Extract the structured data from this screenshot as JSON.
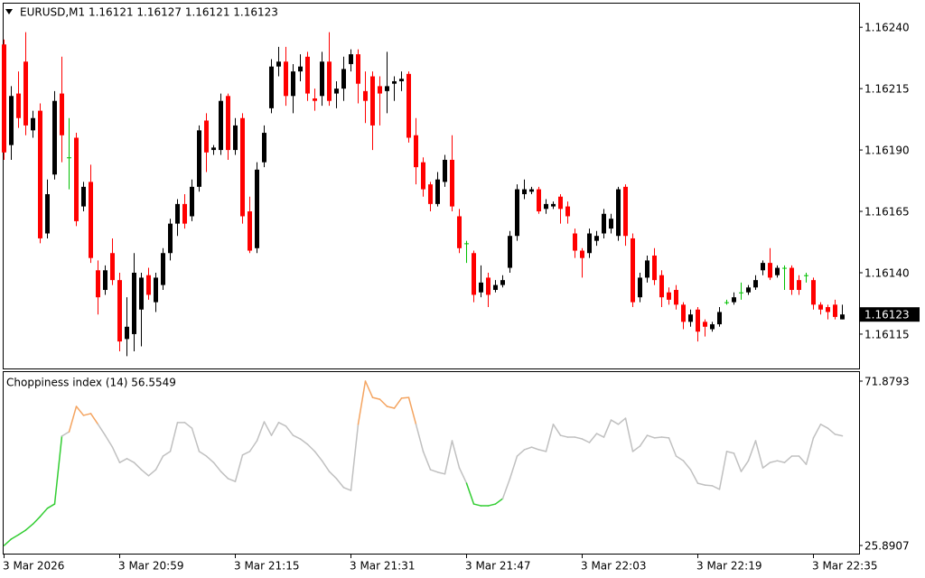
{
  "chart_data": [
    {
      "type": "candlestick",
      "title": "EURUSD,M1  1.16121 1.16127 1.16121 1.16123",
      "categories": [
        "3 Mar 2026",
        null,
        null,
        null,
        null,
        null,
        null,
        null,
        null,
        null,
        null,
        null,
        null,
        null,
        null,
        null,
        "3 Mar 20:59",
        null,
        null,
        null,
        null,
        null,
        null,
        null,
        null,
        null,
        null,
        null,
        null,
        null,
        null,
        null,
        "3 Mar 21:15",
        null,
        null,
        null,
        null,
        null,
        null,
        null,
        null,
        null,
        null,
        null,
        null,
        null,
        null,
        null,
        "3 Mar 21:31",
        null,
        null,
        null,
        null,
        null,
        null,
        null,
        null,
        null,
        null,
        null,
        null,
        null,
        null,
        null,
        "3 Mar 21:47",
        null,
        null,
        null,
        null,
        null,
        null,
        null,
        null,
        null,
        null,
        null,
        null,
        null,
        null,
        null,
        "3 Mar 22:03",
        null,
        null,
        null,
        null,
        null,
        null,
        null,
        null,
        null,
        null,
        null,
        null,
        null,
        null,
        null,
        "3 Mar 22:19",
        null,
        null,
        null,
        null,
        null,
        null,
        null,
        null,
        null,
        null,
        null,
        null,
        null,
        null,
        null,
        "3 Mar 22:35",
        null,
        null,
        null,
        null
      ],
      "open": [
        1.16233,
        1.16192,
        1.16213,
        1.16226,
        1.16198,
        1.16206,
        1.16156,
        1.1618,
        1.16213,
        1.16187,
        1.16195,
        1.16167,
        1.16177,
        1.16141,
        1.16133,
        1.16148,
        1.16137,
        1.16113,
        1.16115,
        1.16125,
        1.16139,
        1.16128,
        1.16135,
        1.16148,
        1.1616,
        1.16168,
        1.16163,
        1.16175,
        1.16202,
        1.1619,
        1.1619,
        1.16212,
        1.1619,
        1.16203,
        1.16165,
        1.1615,
        1.16185,
        1.16207,
        1.16224,
        1.16226,
        1.16212,
        1.16222,
        1.16228,
        1.16211,
        1.16212,
        1.16226,
        1.16213,
        1.16215,
        1.16225,
        1.16229,
        1.16214,
        1.1622,
        1.16216,
        1.16214,
        1.16217,
        1.16218,
        1.16221,
        1.16196,
        1.16185,
        1.16176,
        1.16168,
        1.16177,
        1.16186,
        1.16163,
        1.16152,
        1.16148,
        1.16132,
        1.16138,
        1.16133,
        1.16135,
        1.16142,
        1.16155,
        1.16172,
        1.16173,
        1.16174,
        1.16166,
        1.16167,
        1.16171,
        1.16167,
        1.16156,
        1.16149,
        1.16148,
        1.16153,
        1.16156,
        1.16158,
        1.16155,
        1.16175,
        1.16154,
        1.1613,
        1.16138,
        1.16147,
        1.16139,
        1.16132,
        1.16133,
        1.16127,
        1.1612,
        1.16125,
        1.1612,
        1.16117,
        1.16119,
        1.16128,
        1.16128,
        1.16132,
        1.16132,
        1.16134,
        1.16141,
        1.16144,
        1.16139,
        1.16142,
        1.16142,
        1.16137,
        1.16139,
        1.16137,
        1.16127,
        1.16126,
        1.16127,
        1.16121
      ],
      "high": [
        1.16235,
        1.16216,
        1.16222,
        1.16238,
        1.16206,
        1.16209,
        1.16178,
        1.16214,
        1.16228,
        1.16203,
        1.16197,
        1.16177,
        1.16184,
        1.16145,
        1.16143,
        1.16154,
        1.1614,
        1.1613,
        1.16148,
        1.1614,
        1.16142,
        1.1614,
        1.1615,
        1.16162,
        1.1617,
        1.16172,
        1.16178,
        1.162,
        1.16205,
        1.16192,
        1.16213,
        1.16213,
        1.16203,
        1.16205,
        1.16171,
        1.16185,
        1.162,
        1.16227,
        1.16232,
        1.16232,
        1.16225,
        1.16229,
        1.1623,
        1.16215,
        1.1623,
        1.16238,
        1.16218,
        1.16228,
        1.16231,
        1.16231,
        1.16222,
        1.16222,
        1.1622,
        1.1623,
        1.1622,
        1.16222,
        1.16222,
        1.16203,
        1.16187,
        1.16177,
        1.16181,
        1.16188,
        1.16196,
        1.16166,
        1.16153,
        1.16149,
        1.16143,
        1.1614,
        1.16137,
        1.16139,
        1.16157,
        1.16176,
        1.16178,
        1.16175,
        1.16175,
        1.1617,
        1.16169,
        1.16172,
        1.16169,
        1.16158,
        1.1615,
        1.16158,
        1.16157,
        1.16166,
        1.16164,
        1.16175,
        1.16176,
        1.16156,
        1.1614,
        1.16147,
        1.1615,
        1.16141,
        1.16134,
        1.16135,
        1.16128,
        1.16125,
        1.16126,
        1.16121,
        1.1612,
        1.16126,
        1.16129,
        1.16132,
        1.16136,
        1.16135,
        1.16139,
        1.16145,
        1.1615,
        1.16143,
        1.16143,
        1.16143,
        1.16139,
        1.1614,
        1.16138,
        1.16128,
        1.16127,
        1.16129,
        1.16127
      ],
      "low": [
        1.16186,
        1.16186,
        1.16199,
        1.16196,
        1.16195,
        1.16152,
        1.16154,
        1.16178,
        1.16185,
        1.16174,
        1.16159,
        1.16165,
        1.16144,
        1.16123,
        1.16131,
        1.16135,
        1.16108,
        1.16106,
        1.16108,
        1.1611,
        1.16129,
        1.16124,
        1.16133,
        1.16145,
        1.16155,
        1.16158,
        1.16161,
        1.16173,
        1.16181,
        1.16188,
        1.16188,
        1.16186,
        1.16188,
        1.1616,
        1.16148,
        1.16148,
        1.16183,
        1.16205,
        1.1622,
        1.16208,
        1.16205,
        1.16218,
        1.1621,
        1.16206,
        1.16208,
        1.16208,
        1.16207,
        1.1621,
        1.16222,
        1.16209,
        1.16201,
        1.1619,
        1.162,
        1.16205,
        1.1621,
        1.16214,
        1.16193,
        1.16176,
        1.16171,
        1.16165,
        1.16167,
        1.16175,
        1.16165,
        1.16148,
        1.16144,
        1.16128,
        1.1613,
        1.16126,
        1.16132,
        1.16134,
        1.1614,
        1.16153,
        1.1617,
        1.16172,
        1.16164,
        1.16164,
        1.16166,
        1.1616,
        1.1616,
        1.16146,
        1.16138,
        1.16146,
        1.16151,
        1.16154,
        1.16156,
        1.16153,
        1.16151,
        1.16126,
        1.16128,
        1.16136,
        1.16135,
        1.16126,
        1.16127,
        1.16125,
        1.16117,
        1.16118,
        1.16112,
        1.16114,
        1.16116,
        1.16118,
        1.16127,
        1.16127,
        1.16129,
        1.16131,
        1.16133,
        1.16139,
        1.16137,
        1.16138,
        1.16133,
        1.16131,
        1.16131,
        1.16136,
        1.16125,
        1.16123,
        1.16121,
        1.16121,
        1.16121
      ],
      "close": [
        1.16189,
        1.16212,
        1.16203,
        1.162,
        1.16203,
        1.16154,
        1.16172,
        1.1621,
        1.16196,
        1.16187,
        1.16161,
        1.16175,
        1.16146,
        1.1613,
        1.16141,
        1.16137,
        1.16112,
        1.16118,
        1.1614,
        1.16138,
        1.16131,
        1.16138,
        1.16148,
        1.1616,
        1.16168,
        1.1616,
        1.16175,
        1.16198,
        1.16189,
        1.16191,
        1.1621,
        1.1619,
        1.162,
        1.16163,
        1.16149,
        1.16182,
        1.16197,
        1.16224,
        1.16226,
        1.16212,
        1.16222,
        1.16224,
        1.16213,
        1.1621,
        1.16226,
        1.1621,
        1.16215,
        1.16223,
        1.16229,
        1.16217,
        1.1621,
        1.162,
        1.16213,
        1.16216,
        1.16218,
        1.16219,
        1.16195,
        1.16183,
        1.16174,
        1.16168,
        1.16178,
        1.16186,
        1.16167,
        1.1615,
        1.16152,
        1.16131,
        1.16136,
        1.16131,
        1.16135,
        1.16137,
        1.16155,
        1.16174,
        1.16174,
        1.16174,
        1.16165,
        1.16168,
        1.16168,
        1.16166,
        1.16163,
        1.16149,
        1.16146,
        1.16156,
        1.16155,
        1.16164,
        1.16162,
        1.16174,
        1.16155,
        1.16128,
        1.16138,
        1.16145,
        1.16137,
        1.1613,
        1.16129,
        1.16127,
        1.1612,
        1.16123,
        1.16116,
        1.16118,
        1.16119,
        1.16124,
        1.16128,
        1.1613,
        1.16132,
        1.16134,
        1.16137,
        1.16144,
        1.16138,
        1.16142,
        1.16142,
        1.16133,
        1.16133,
        1.16139,
        1.16127,
        1.16125,
        1.16124,
        1.16122,
        1.16123
      ],
      "up_color": "#000000",
      "down_color": "#ff0000",
      "doji_color": "#00c000",
      "ylim": [
        1.16101,
        1.1625
      ],
      "yticks": [
        {
          "value": 1.1624,
          "label": "1.16240"
        },
        1.16215,
        {
          "value": 1.1619,
          "label": "1.16190"
        },
        1.16165,
        {
          "value": 1.1614,
          "label": "1.16140"
        },
        1.16115
      ],
      "last_price": 1.16123,
      "grid": false
    },
    {
      "type": "line",
      "title": "Choppiness index (14) 56.5549",
      "values": [
        25.8907,
        27.7,
        28.9,
        30.2,
        31.9,
        34,
        36.3,
        37.5,
        56.5,
        57.7,
        64.8,
        62.3,
        62.8,
        59.8,
        56.7,
        53.4,
        49.1,
        50.2,
        49.1,
        47.1,
        45.4,
        47.1,
        50.9,
        52.2,
        60.3,
        60.3,
        58.7,
        52.2,
        50.9,
        49.1,
        46.6,
        44.6,
        43.8,
        51.2,
        52.2,
        55.2,
        60.5,
        56.7,
        60.3,
        59.3,
        56.7,
        55.7,
        54.2,
        52.2,
        49.6,
        46.6,
        44.6,
        42.1,
        41.3,
        59.8,
        71.8793,
        67.3,
        66.8,
        64.8,
        64.3,
        67.1,
        67.3,
        59.8,
        52.2,
        47.1,
        46.4,
        45.9,
        55.2,
        47.6,
        43.3,
        37.5,
        37,
        37,
        37.5,
        39,
        44.6,
        50.9,
        52.7,
        53.4,
        52.7,
        52.2,
        59.8,
        56.7,
        56.2,
        56.2,
        55.7,
        54.7,
        57.2,
        56.2,
        61,
        59.8,
        61.5,
        52.2,
        53.7,
        56.7,
        56,
        56.2,
        56,
        50.9,
        49.6,
        47.1,
        43.3,
        42.8,
        42.6,
        41.6,
        52.2,
        51.7,
        46.6,
        49.6,
        55.2,
        47.6,
        49.1,
        49.6,
        49.1,
        50.9,
        50.9,
        48.6,
        56,
        59.8,
        58.7,
        57,
        56.5549
      ],
      "color": "#c0c0c0",
      "high_color": "#f4a460",
      "low_color": "#32cd32",
      "levels": [
        38.2,
        61.8
      ],
      "ylim": [
        23.62,
        74.66
      ],
      "yticks": [
        71.8793,
        25.8907
      ],
      "grid": false
    }
  ]
}
